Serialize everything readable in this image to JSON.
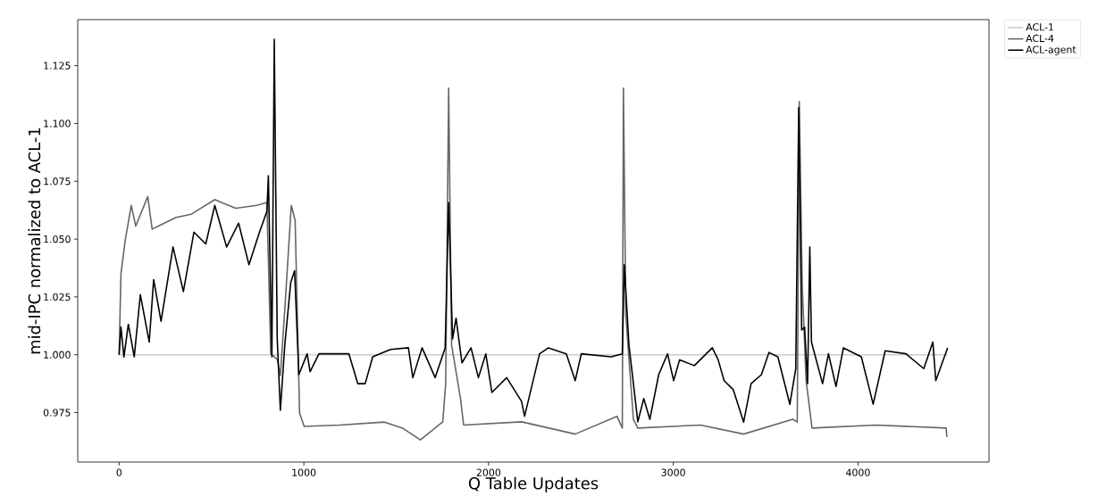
{
  "chart_data": {
    "type": "line",
    "xlabel": "Q Table Updates",
    "ylabel": "mid-IPC normalized to ACL-1",
    "xlim": [
      -224,
      4709
    ],
    "ylim": [
      0.9536,
      1.1449
    ],
    "xticks": [
      0,
      1000,
      2000,
      3000,
      4000
    ],
    "yticks": [
      {
        "value": 0.975,
        "label": "0.975"
      },
      {
        "value": 1.0,
        "label": "1.000"
      },
      {
        "value": 1.025,
        "label": "1.025"
      },
      {
        "value": 1.05,
        "label": "1.050"
      },
      {
        "value": 1.075,
        "label": "1.075"
      },
      {
        "value": 1.1,
        "label": "1.100"
      },
      {
        "value": 1.125,
        "label": "1.125"
      }
    ],
    "legend": "top right",
    "grid": false,
    "marker": "none",
    "line_style": "solid",
    "series": [
      {
        "name": "ACL-1",
        "color": "#cccccc",
        "x": [
          0,
          4485
        ],
        "values": [
          1.0,
          1.0
        ]
      },
      {
        "name": "ACL-4",
        "color": "#666666",
        "x": [
          0,
          10,
          34,
          66,
          90,
          155,
          179,
          308,
          389,
          518,
          631,
          744,
          800,
          821,
          856,
          873,
          897,
          932,
          953,
          977,
          1002,
          1195,
          1437,
          1534,
          1631,
          1752,
          1768,
          1784,
          1800,
          1848,
          1865,
          2179,
          2469,
          2695,
          2724,
          2730,
          2743,
          2784,
          2808,
          3147,
          3381,
          3647,
          3671,
          3682,
          3698,
          3719,
          3735,
          3751,
          4098,
          4477,
          4481
        ],
        "values": [
          1.0,
          1.035,
          1.05,
          1.0646,
          1.0556,
          1.0684,
          1.0543,
          1.0594,
          1.0607,
          1.0671,
          1.0633,
          1.0646,
          1.0658,
          1.0004,
          0.998,
          0.991,
          1.0196,
          1.0646,
          1.0581,
          0.9747,
          0.969,
          0.9696,
          0.9709,
          0.9683,
          0.9632,
          0.971,
          0.9875,
          1.1153,
          1.0042,
          0.9811,
          0.9696,
          0.971,
          0.9657,
          0.9734,
          0.9683,
          1.1153,
          1.0171,
          0.9721,
          0.9683,
          0.9696,
          0.9657,
          0.9721,
          0.9709,
          1.1095,
          1.0299,
          0.9888,
          0.9786,
          0.9683,
          0.9696,
          0.9683,
          0.9644
        ]
      },
      {
        "name": "ACL-agent",
        "color": "#000000",
        "x": [
          0,
          10,
          26,
          50,
          82,
          115,
          163,
          187,
          227,
          292,
          348,
          405,
          469,
          518,
          582,
          647,
          703,
          760,
          800,
          808,
          827,
          840,
          856,
          873,
          897,
          929,
          950,
          973,
          1018,
          1034,
          1082,
          1244,
          1292,
          1332,
          1373,
          1469,
          1566,
          1590,
          1640,
          1711,
          1765,
          1784,
          1805,
          1824,
          1856,
          1905,
          1945,
          1985,
          2018,
          2098,
          2179,
          2195,
          2276,
          2324,
          2421,
          2469,
          2502,
          2663,
          2724,
          2735,
          2760,
          2808,
          2840,
          2873,
          2921,
          2969,
          3002,
          3034,
          3114,
          3211,
          3243,
          3275,
          3324,
          3381,
          3421,
          3477,
          3518,
          3566,
          3631,
          3663,
          3679,
          3695,
          3711,
          3727,
          3739,
          3748,
          3808,
          3840,
          3881,
          3921,
          4018,
          4082,
          4147,
          4260,
          4356,
          4405,
          4421,
          4485
        ],
        "values": [
          1.0,
          1.012,
          0.999,
          1.0132,
          0.9991,
          1.026,
          1.0055,
          1.0325,
          1.0145,
          1.0466,
          1.0273,
          1.053,
          1.0479,
          1.0646,
          1.0466,
          1.0569,
          1.0389,
          1.053,
          1.062,
          1.0774,
          0.9991,
          1.1364,
          1.0068,
          0.976,
          1.0042,
          1.0312,
          1.0363,
          0.9914,
          1.0004,
          0.9927,
          1.0004,
          1.0004,
          0.9875,
          0.9875,
          0.9991,
          1.0023,
          1.003,
          0.9901,
          1.003,
          0.9901,
          1.003,
          1.0658,
          1.0068,
          1.0158,
          0.9965,
          1.003,
          0.9901,
          1.0004,
          0.9837,
          0.9901,
          0.9798,
          0.9734,
          1.0004,
          1.003,
          1.0004,
          0.9888,
          1.0004,
          0.9991,
          1.0004,
          1.0389,
          1.0042,
          0.971,
          0.9811,
          0.9721,
          0.9914,
          1.0004,
          0.9888,
          0.9978,
          0.9953,
          1.003,
          0.9978,
          0.9888,
          0.985,
          0.9709,
          0.9875,
          0.9914,
          1.001,
          0.9991,
          0.9786,
          0.994,
          1.1069,
          1.0107,
          1.0119,
          0.9875,
          1.0466,
          1.0055,
          0.9875,
          1.0004,
          0.9863,
          1.003,
          0.9991,
          0.9786,
          1.0017,
          1.0004,
          0.994,
          1.0055,
          0.9888,
          1.003
        ]
      }
    ]
  }
}
